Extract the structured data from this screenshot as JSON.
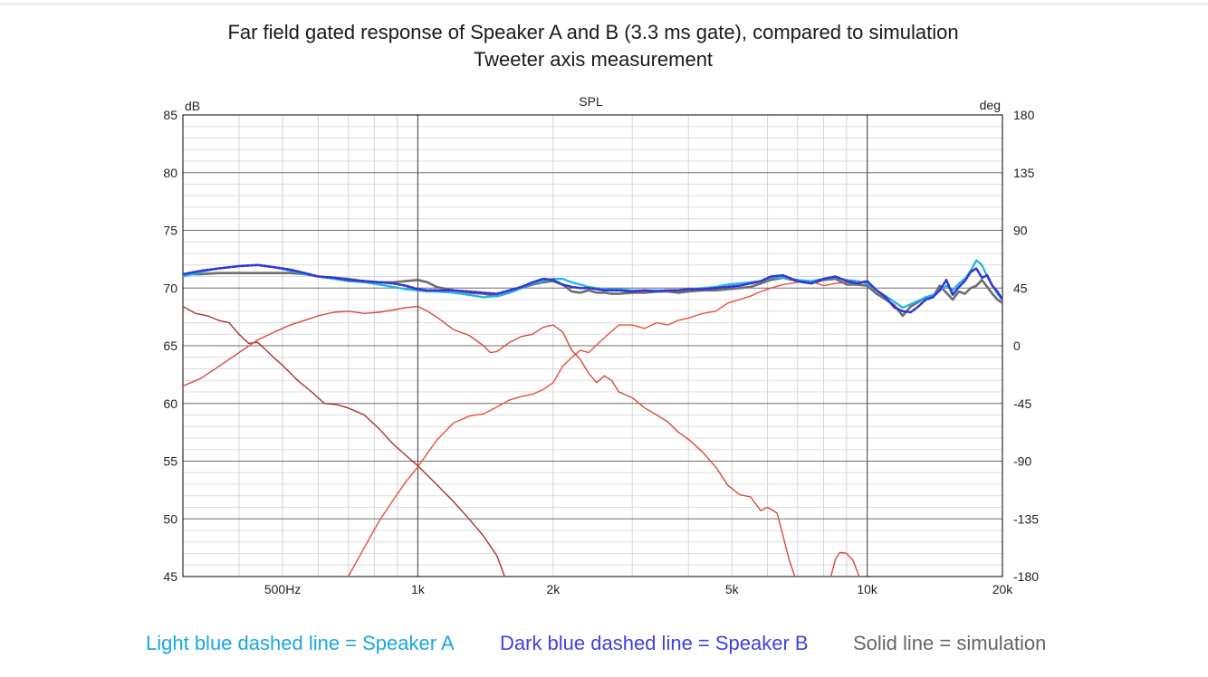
{
  "titles": {
    "line1": "Far field gated response of Speaker A and B (3.3 ms gate), compared to simulation",
    "line2": "Tweeter axis measurement"
  },
  "legend": {
    "speaker_a": "Light blue dashed line = Speaker A",
    "speaker_b": "Dark blue dashed line = Speaker B",
    "simulation": "Solid line = simulation"
  },
  "chart_data": {
    "type": "line",
    "title": "SPL",
    "ylabel": "dB",
    "y2label": "deg",
    "xscale": "log",
    "xlim": [
      300,
      20000
    ],
    "ylim": [
      45,
      85
    ],
    "y2lim": [
      -180,
      180
    ],
    "x_ticks": [
      {
        "value": 500,
        "label": "500Hz"
      },
      {
        "value": 1000,
        "label": "1k"
      },
      {
        "value": 2000,
        "label": "2k"
      },
      {
        "value": 5000,
        "label": "5k"
      },
      {
        "value": 10000,
        "label": "10k"
      },
      {
        "value": 20000,
        "label": "20k"
      }
    ],
    "y_ticks": [
      {
        "value": 85,
        "label": "85"
      },
      {
        "value": 80,
        "label": "80"
      },
      {
        "value": 75,
        "label": "75"
      },
      {
        "value": 70,
        "label": "70"
      },
      {
        "value": 65,
        "label": "65"
      },
      {
        "value": 60,
        "label": "60"
      },
      {
        "value": 55,
        "label": "55"
      },
      {
        "value": 50,
        "label": "50"
      },
      {
        "value": 45,
        "label": "45"
      }
    ],
    "y2_ticks": [
      {
        "value": 180,
        "label": "180"
      },
      {
        "value": 135,
        "label": "135"
      },
      {
        "value": 90,
        "label": "90"
      },
      {
        "value": 45,
        "label": "45"
      },
      {
        "value": 0,
        "label": "0"
      },
      {
        "value": -45,
        "label": "-45"
      },
      {
        "value": -90,
        "label": "-90"
      },
      {
        "value": -135,
        "label": "-135"
      },
      {
        "value": -180,
        "label": "-180"
      }
    ],
    "grid": true,
    "series": [
      {
        "key": "woofer",
        "color": "#a83232",
        "width": 1.4,
        "x": [
          300,
          320,
          340,
          360,
          380,
          400,
          420,
          440,
          460,
          480,
          500,
          540,
          580,
          620,
          660,
          700,
          760,
          820,
          880,
          940,
          1000,
          1100,
          1200,
          1300,
          1400,
          1500
        ],
        "y": [
          68.4,
          67.8,
          67.6,
          67.2,
          67.0,
          66.0,
          65.2,
          65.3,
          64.6,
          63.9,
          63.3,
          62.0,
          61.0,
          60.0,
          59.9,
          59.6,
          59.0,
          57.8,
          56.5,
          55.5,
          54.6,
          53.0,
          51.5,
          50.0,
          48.5,
          46.8
        ]
      },
      {
        "key": "woofer-tail",
        "color": "#a83232",
        "width": 1.4,
        "x": [
          1500,
          1560
        ],
        "y": [
          46.8,
          45
        ]
      },
      {
        "key": "tweeter",
        "color": "#e8503c",
        "width": 1.4,
        "x": [
          700,
          760,
          820,
          880,
          940,
          1000,
          1100,
          1200,
          1300,
          1400,
          1500,
          1600,
          1700,
          1800,
          1900,
          2000,
          2100,
          2200,
          2300,
          2400,
          2600,
          2800,
          3000,
          3200,
          3400,
          3600,
          3800,
          4000,
          4300,
          4600,
          4900,
          5200,
          5500,
          5800,
          6100,
          6500,
          7000,
          7500,
          8000,
          8500,
          9000,
          9500,
          10000
        ],
        "y": [
          45,
          47.5,
          49.8,
          51.6,
          53.2,
          54.5,
          56.8,
          58.3,
          58.9,
          59.1,
          59.7,
          60.3,
          60.6,
          60.8,
          61.2,
          61.8,
          63.2,
          64.0,
          64.6,
          64.4,
          65.7,
          66.8,
          66.8,
          66.5,
          67.0,
          66.8,
          67.2,
          67.4,
          67.8,
          68.0,
          68.7,
          69.0,
          69.3,
          69.7,
          70.0,
          70.3,
          70.5,
          70.6,
          70.2,
          70.4,
          70.5,
          70.4,
          70.2
        ]
      },
      {
        "key": "midrange",
        "color": "#d84a3c",
        "width": 1.4,
        "x": [
          300,
          330,
          360,
          400,
          440,
          480,
          520,
          560,
          600,
          650,
          700,
          760,
          820,
          880,
          940,
          1000,
          1050,
          1100,
          1200,
          1300,
          1400,
          1450,
          1500,
          1550,
          1600,
          1700,
          1800,
          1900,
          2000,
          2100,
          2200,
          2300,
          2400,
          2500,
          2600,
          2700,
          2800,
          3000,
          3200,
          3400,
          3600,
          3800,
          4000,
          4300,
          4600,
          4900,
          5200,
          5500,
          5800,
          6000,
          6300,
          6500,
          6700,
          6900
        ],
        "y": [
          61.5,
          62.2,
          63.2,
          64.4,
          65.5,
          66.2,
          66.8,
          67.2,
          67.6,
          67.9,
          68.0,
          67.8,
          67.9,
          68.1,
          68.3,
          68.4,
          68.0,
          67.5,
          66.4,
          65.9,
          65.0,
          64.4,
          64.5,
          64.9,
          65.3,
          65.8,
          66.0,
          66.6,
          66.8,
          66.2,
          64.6,
          63.8,
          62.6,
          61.8,
          62.4,
          62.0,
          61.0,
          60.5,
          59.6,
          59.0,
          58.4,
          57.5,
          56.9,
          55.8,
          54.5,
          52.9,
          52.1,
          51.9,
          50.7,
          51.0,
          50.5,
          48.5,
          46.5,
          45
        ]
      },
      {
        "key": "midrange-tail",
        "color": "#d84a3c",
        "width": 1.4,
        "x": [
          8300,
          8500,
          8700,
          9000,
          9300,
          9600
        ],
        "y": [
          45,
          46.5,
          47.1,
          47.0,
          46.4,
          45
        ]
      },
      {
        "key": "simulation",
        "name": "Solid line = simulation",
        "color": "#6e6e6e",
        "width": 2.6,
        "x": [
          300,
          330,
          360,
          400,
          440,
          480,
          520,
          560,
          600,
          650,
          700,
          760,
          820,
          880,
          940,
          1000,
          1050,
          1100,
          1200,
          1300,
          1400,
          1500,
          1600,
          1700,
          1800,
          1900,
          2000,
          2100,
          2200,
          2300,
          2400,
          2500,
          2600,
          2700,
          2800,
          3000,
          3200,
          3400,
          3600,
          3800,
          4000,
          4300,
          4600,
          4900,
          5200,
          5500,
          5800,
          6100,
          6500,
          7000,
          7500,
          8000,
          8500,
          9000,
          9500,
          10000,
          10500,
          11000,
          11500,
          12000,
          12500,
          13000,
          13500,
          14000,
          14500,
          15000,
          15500,
          16000,
          16500,
          17000,
          17500,
          18000,
          18500,
          19000,
          19500,
          20000
        ],
        "y": [
          71.2,
          71.2,
          71.3,
          71.3,
          71.3,
          71.3,
          71.3,
          71.2,
          71.0,
          70.9,
          70.8,
          70.6,
          70.5,
          70.5,
          70.6,
          70.7,
          70.5,
          70.1,
          69.8,
          69.6,
          69.5,
          69.3,
          69.6,
          70.0,
          70.3,
          70.5,
          70.6,
          70.3,
          69.7,
          69.6,
          69.8,
          69.6,
          69.6,
          69.5,
          69.5,
          69.6,
          69.6,
          69.7,
          69.7,
          69.6,
          69.7,
          69.8,
          69.8,
          69.9,
          70.0,
          70.1,
          70.4,
          70.7,
          70.9,
          70.6,
          70.4,
          70.7,
          70.8,
          70.3,
          70.3,
          70.2,
          69.5,
          69.0,
          68.5,
          67.6,
          68.4,
          68.8,
          69.2,
          69.2,
          70.2,
          69.6,
          69.0,
          69.7,
          69.5,
          70.0,
          70.2,
          70.7,
          70.1,
          69.5,
          69.0,
          68.7
        ]
      },
      {
        "key": "speaker-a",
        "name": "Light blue dashed line = Speaker A",
        "color": "#1fb4e4",
        "width": 2.4,
        "dash": "2 2",
        "x": [
          300,
          330,
          360,
          400,
          440,
          480,
          520,
          560,
          600,
          650,
          700,
          760,
          820,
          880,
          940,
          1000,
          1050,
          1100,
          1200,
          1300,
          1400,
          1500,
          1600,
          1700,
          1800,
          1900,
          2000,
          2100,
          2200,
          2300,
          2400,
          2500,
          2600,
          2700,
          2800,
          3000,
          3200,
          3400,
          3600,
          3800,
          4000,
          4300,
          4600,
          4900,
          5200,
          5500,
          5800,
          6100,
          6500,
          7000,
          7500,
          8000,
          8500,
          9000,
          9500,
          10000,
          10500,
          11000,
          11500,
          12000,
          12500,
          13000,
          13500,
          14000,
          14500,
          15000,
          15500,
          16000,
          16500,
          17000,
          17500,
          18000,
          18500,
          19000,
          19500,
          20000
        ],
        "y": [
          71.0,
          71.4,
          71.7,
          71.9,
          72.0,
          71.8,
          71.5,
          71.2,
          71.0,
          70.8,
          70.6,
          70.5,
          70.3,
          70.1,
          69.9,
          69.8,
          69.7,
          69.7,
          69.6,
          69.4,
          69.2,
          69.3,
          69.6,
          70.0,
          70.4,
          70.6,
          70.8,
          70.8,
          70.5,
          70.3,
          70.1,
          70.0,
          69.9,
          69.9,
          69.9,
          69.8,
          69.8,
          69.8,
          69.8,
          69.8,
          69.9,
          70.0,
          70.1,
          70.3,
          70.4,
          70.5,
          70.6,
          70.9,
          70.9,
          70.7,
          70.6,
          70.8,
          70.9,
          70.7,
          70.6,
          70.4,
          69.8,
          69.3,
          68.8,
          68.3,
          68.6,
          68.9,
          69.2,
          69.4,
          69.8,
          70.2,
          69.8,
          70.4,
          70.8,
          71.5,
          72.4,
          72.0,
          71.0,
          70.2,
          69.5,
          69.0
        ]
      },
      {
        "key": "speaker-b",
        "name": "Dark blue dashed line = Speaker B",
        "color": "#3434d6",
        "width": 2.6,
        "dash": "3 2",
        "x": [
          300,
          330,
          360,
          400,
          440,
          480,
          520,
          560,
          600,
          650,
          700,
          760,
          820,
          880,
          940,
          1000,
          1050,
          1100,
          1200,
          1300,
          1400,
          1500,
          1600,
          1700,
          1800,
          1900,
          2000,
          2100,
          2200,
          2300,
          2400,
          2500,
          2600,
          2700,
          2800,
          3000,
          3200,
          3400,
          3600,
          3800,
          4000,
          4300,
          4600,
          4900,
          5200,
          5500,
          5800,
          6100,
          6500,
          7000,
          7500,
          8000,
          8500,
          9000,
          9500,
          10000,
          10500,
          11000,
          11500,
          12000,
          12500,
          13000,
          13500,
          14000,
          14500,
          15000,
          15500,
          16000,
          16500,
          17000,
          17500,
          18000,
          18500,
          19000,
          19500,
          20000
        ],
        "y": [
          71.2,
          71.5,
          71.7,
          71.9,
          72.0,
          71.8,
          71.6,
          71.3,
          71.0,
          70.9,
          70.7,
          70.6,
          70.5,
          70.4,
          70.2,
          69.9,
          69.8,
          69.8,
          69.8,
          69.7,
          69.6,
          69.5,
          69.8,
          70.1,
          70.5,
          70.8,
          70.7,
          70.3,
          70.1,
          70.0,
          70.0,
          69.9,
          69.8,
          69.8,
          69.8,
          69.7,
          69.8,
          69.7,
          69.8,
          69.8,
          69.9,
          69.9,
          70.0,
          70.1,
          70.2,
          70.4,
          70.6,
          71.0,
          71.1,
          70.6,
          70.4,
          70.8,
          71.0,
          70.6,
          70.4,
          70.6,
          69.8,
          69.2,
          68.3,
          68.0,
          67.9,
          68.4,
          69.0,
          69.2,
          69.8,
          70.7,
          69.4,
          70.1,
          70.6,
          71.4,
          71.7,
          70.9,
          71.1,
          70.2,
          69.7,
          69.0
        ]
      }
    ]
  }
}
